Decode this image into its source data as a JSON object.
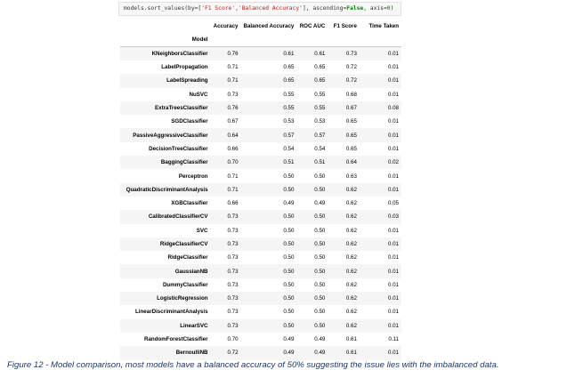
{
  "code": {
    "prefix": "models.sort_values(by=[",
    "str1": "'F1 Score'",
    "sep": ",",
    "str2": "'Balanced Accuracy'",
    "mid": "], ascending=",
    "kw": "False",
    "mid2": ", axis=",
    "num": "0",
    "suffix": ")"
  },
  "table": {
    "index_name": "Model",
    "columns": [
      "Accuracy",
      "Balanced Accuracy",
      "ROC AUC",
      "F1 Score",
      "Time Taken"
    ],
    "rows": [
      {
        "model": "KNeighborsClassifier",
        "values": [
          "0.76",
          "0.61",
          "0.61",
          "0.73",
          "0.01"
        ]
      },
      {
        "model": "LabelPropagation",
        "values": [
          "0.71",
          "0.65",
          "0.65",
          "0.72",
          "0.01"
        ]
      },
      {
        "model": "LabelSpreading",
        "values": [
          "0.71",
          "0.65",
          "0.65",
          "0.72",
          "0.01"
        ]
      },
      {
        "model": "NuSVC",
        "values": [
          "0.73",
          "0.55",
          "0.55",
          "0.68",
          "0.01"
        ]
      },
      {
        "model": "ExtraTreesClassifier",
        "values": [
          "0.76",
          "0.55",
          "0.55",
          "0.67",
          "0.08"
        ]
      },
      {
        "model": "SGDClassifier",
        "values": [
          "0.67",
          "0.53",
          "0.53",
          "0.65",
          "0.01"
        ]
      },
      {
        "model": "PassiveAggressiveClassifier",
        "values": [
          "0.64",
          "0.57",
          "0.57",
          "0.65",
          "0.01"
        ]
      },
      {
        "model": "DecisionTreeClassifier",
        "values": [
          "0.66",
          "0.54",
          "0.54",
          "0.65",
          "0.01"
        ]
      },
      {
        "model": "BaggingClassifier",
        "values": [
          "0.70",
          "0.51",
          "0.51",
          "0.64",
          "0.02"
        ]
      },
      {
        "model": "Perceptron",
        "values": [
          "0.71",
          "0.50",
          "0.50",
          "0.63",
          "0.01"
        ]
      },
      {
        "model": "QuadraticDiscriminantAnalysis",
        "values": [
          "0.71",
          "0.50",
          "0.50",
          "0.62",
          "0.01"
        ]
      },
      {
        "model": "XGBClassifier",
        "values": [
          "0.66",
          "0.49",
          "0.49",
          "0.62",
          "0.05"
        ]
      },
      {
        "model": "CalibratedClassifierCV",
        "values": [
          "0.73",
          "0.50",
          "0.50",
          "0.62",
          "0.03"
        ]
      },
      {
        "model": "SVC",
        "values": [
          "0.73",
          "0.50",
          "0.50",
          "0.62",
          "0.01"
        ]
      },
      {
        "model": "RidgeClassifierCV",
        "values": [
          "0.73",
          "0.50",
          "0.50",
          "0.62",
          "0.01"
        ]
      },
      {
        "model": "RidgeClassifier",
        "values": [
          "0.73",
          "0.50",
          "0.50",
          "0.62",
          "0.01"
        ]
      },
      {
        "model": "GaussianNB",
        "values": [
          "0.73",
          "0.50",
          "0.50",
          "0.62",
          "0.01"
        ]
      },
      {
        "model": "DummyClassifier",
        "values": [
          "0.73",
          "0.50",
          "0.50",
          "0.62",
          "0.01"
        ]
      },
      {
        "model": "LogisticRegression",
        "values": [
          "0.73",
          "0.50",
          "0.50",
          "0.62",
          "0.01"
        ]
      },
      {
        "model": "LinearDiscriminantAnalysis",
        "values": [
          "0.73",
          "0.50",
          "0.50",
          "0.62",
          "0.01"
        ]
      },
      {
        "model": "LinearSVC",
        "values": [
          "0.73",
          "0.50",
          "0.50",
          "0.62",
          "0.01"
        ]
      },
      {
        "model": "RandomForestClassifier",
        "values": [
          "0.70",
          "0.49",
          "0.49",
          "0.61",
          "0.11"
        ]
      },
      {
        "model": "BernoulliNB",
        "values": [
          "0.72",
          "0.49",
          "0.49",
          "0.61",
          "0.01"
        ]
      }
    ]
  },
  "caption": "Figure 12 - Model comparison, most models have a balanced accuracy of 50% suggesting the issue lies with the imbalanced data."
}
